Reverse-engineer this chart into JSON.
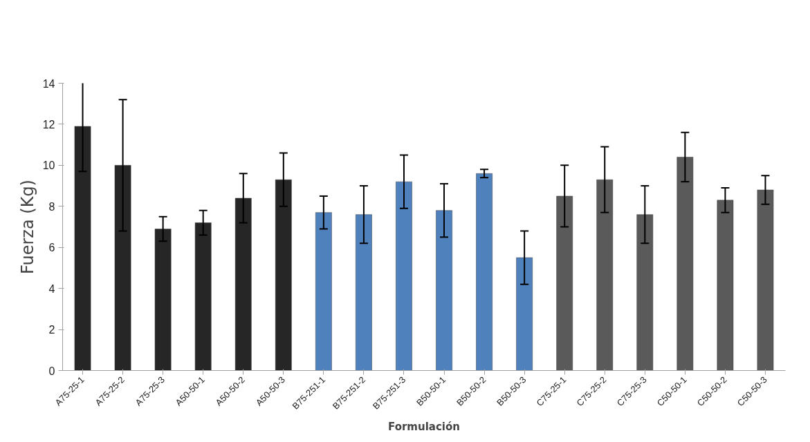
{
  "chart_data": {
    "type": "bar",
    "xlabel": "Formulación",
    "ylabel": "Fuerza (Kg)",
    "categories": [
      "A75-25-1",
      "A75-25-2",
      "A75-25-3",
      "A50-50-1",
      "A50-50-2",
      "A50-50-3",
      "B75-251-1",
      "B75-251-2",
      "B75-251-3",
      "B50-50-1",
      "B50-50-2",
      "B50-50-3",
      "C75-25-1",
      "C75-25-2",
      "C75-25-3",
      "C50-50-1",
      "C50-50-2",
      "C50-50-3"
    ],
    "values": [
      11.9,
      10.0,
      6.9,
      7.2,
      8.4,
      9.3,
      7.7,
      7.6,
      9.2,
      7.8,
      9.6,
      5.5,
      8.5,
      9.3,
      7.6,
      10.4,
      8.3,
      8.8
    ],
    "errors": [
      2.2,
      3.2,
      0.6,
      0.6,
      1.2,
      1.3,
      0.8,
      1.4,
      1.3,
      1.3,
      0.2,
      1.3,
      1.5,
      1.6,
      1.4,
      1.2,
      0.6,
      0.7
    ],
    "colors": [
      "#262626",
      "#262626",
      "#262626",
      "#262626",
      "#262626",
      "#262626",
      "#4f81bd",
      "#4f81bd",
      "#4f81bd",
      "#4f81bd",
      "#4f81bd",
      "#4f81bd",
      "#5a5a5a",
      "#5a5a5a",
      "#5a5a5a",
      "#5a5a5a",
      "#5a5a5a",
      "#5a5a5a"
    ],
    "ylim": [
      0,
      14
    ],
    "yticks": [
      0,
      2,
      4,
      6,
      8,
      10,
      12,
      14
    ],
    "grid": false
  }
}
